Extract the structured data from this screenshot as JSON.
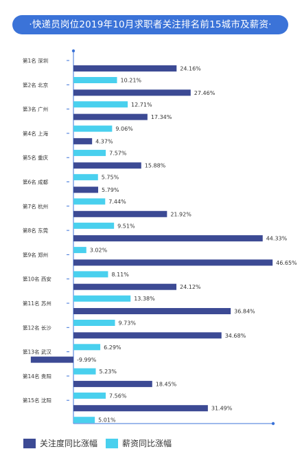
{
  "title": "·快递员岗位2019年10月求职者关注排名前15城市及薪资·",
  "colors": {
    "banner": "#3b73d8",
    "attention": "#3c4a94",
    "salary": "#49d0ee",
    "axis": "#3b73d8",
    "label_text": "#333333"
  },
  "chart_data": {
    "type": "bar",
    "orientation": "horizontal",
    "categories": [
      "第1名 深圳",
      "第2名 北京",
      "第3名 广州",
      "第4名 上海",
      "第5名 重庆",
      "第6名 成都",
      "第7名 杭州",
      "第8名 东莞",
      "第9名 郑州",
      "第10名 西安",
      "第11名 苏州",
      "第12名 长沙",
      "第13名 武汉",
      "第14名 贵阳",
      "第15名 沈阳"
    ],
    "series": [
      {
        "name": "关注度同比涨幅",
        "color": "#3c4a94",
        "values": [
          24.16,
          27.46,
          17.34,
          4.37,
          15.88,
          5.79,
          21.92,
          44.33,
          46.65,
          24.12,
          36.84,
          34.68,
          -9.99,
          18.45,
          31.49
        ],
        "labels": [
          "24.16%",
          "27.46%",
          "17.34%",
          "4.37%",
          "15.88%",
          "5.79%",
          "21.92%",
          "44.33%",
          "46.65%",
          "24.12%",
          "36.84%",
          "34.68%",
          "-9.99%",
          "18.45%",
          "31.49%"
        ]
      },
      {
        "name": "薪资同比涨幅",
        "color": "#49d0ee",
        "values": [
          10.21,
          12.71,
          9.06,
          7.57,
          5.75,
          7.44,
          9.51,
          3.02,
          8.11,
          13.38,
          9.73,
          6.29,
          5.23,
          7.56,
          5.01
        ],
        "labels": [
          "10.21%",
          "12.71%",
          "9.06%",
          "7.57%",
          "5.75%",
          "7.44%",
          "9.51%",
          "3.02%",
          "8.11%",
          "13.38%",
          "9.73%",
          "6.29%",
          "5.23%",
          "7.56%",
          "5.01%"
        ]
      }
    ],
    "legend_position": "bottom-left"
  }
}
